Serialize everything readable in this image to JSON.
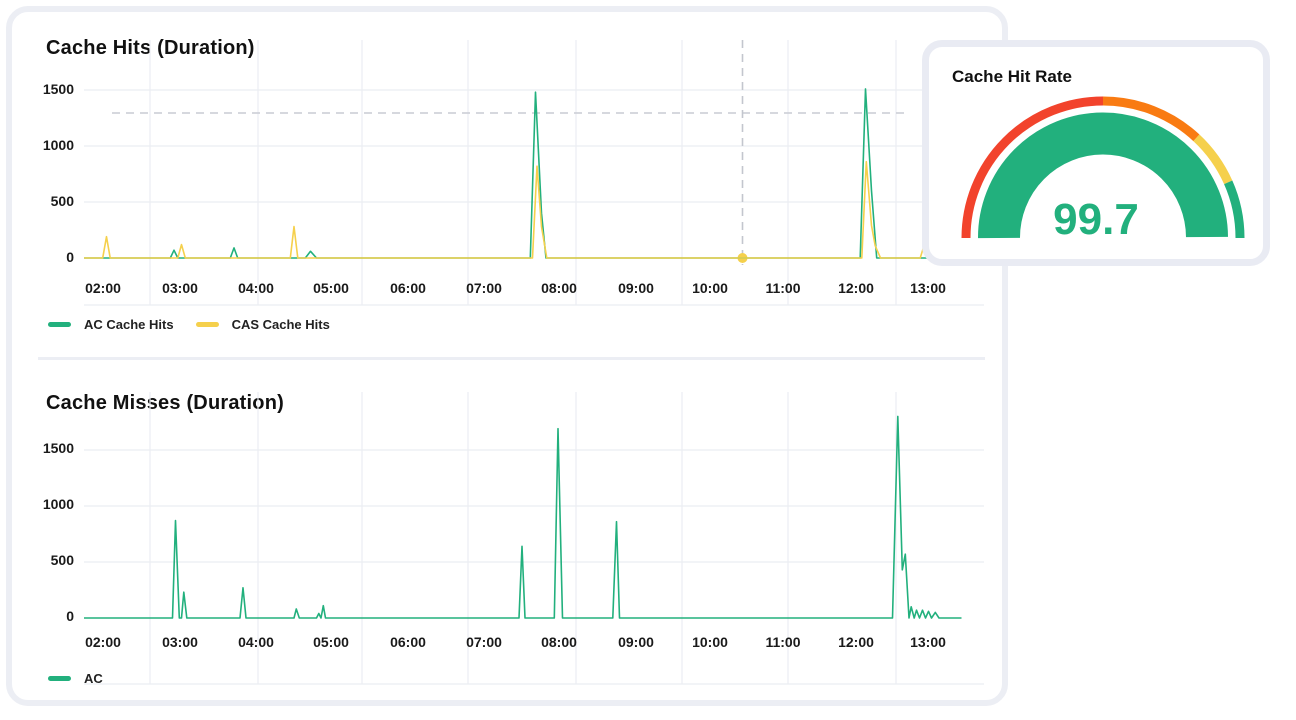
{
  "hits_chart": {
    "title": "Cache Hits (Duration)",
    "legend": [
      {
        "label": "AC Cache Hits",
        "color": "#22b07d"
      },
      {
        "label": "CAS Cache Hits",
        "color": "#f5d04c"
      }
    ]
  },
  "misses_chart": {
    "title": "Cache Misses (Duration)",
    "legend": [
      {
        "label": "AC",
        "color": "#22b07d"
      }
    ]
  },
  "gauge": {
    "title": "Cache Hit Rate",
    "value": "99.7",
    "value_number": 99.7,
    "colors": {
      "fill": "#22b07d",
      "red": "#f2432c",
      "orange": "#f97b12",
      "yellow": "#f5d04c",
      "green": "#22b07d"
    }
  },
  "chart_data": [
    {
      "type": "line",
      "title": "Cache Hits (Duration)",
      "x_tick_labels": [
        "02:00",
        "03:00",
        "04:00",
        "05:00",
        "06:00",
        "07:00",
        "08:00",
        "09:00",
        "10:00",
        "11:00",
        "12:00",
        "13:00"
      ],
      "y_tick_labels": [
        "0",
        "500",
        "1000",
        "1500"
      ],
      "ylim": [
        0,
        1600
      ],
      "x_unit": "hour of day",
      "xlim": [
        1.8,
        13.8
      ],
      "threshold": 1300,
      "crosshair_x": 10.58,
      "grid": true,
      "legend_position": "bottom-left",
      "series": [
        {
          "name": "AC Cache Hits",
          "color": "#22b07d",
          "points": [
            [
              1.8,
              0
            ],
            [
              2.95,
              0
            ],
            [
              3.0,
              70
            ],
            [
              3.05,
              0
            ],
            [
              3.75,
              0
            ],
            [
              3.8,
              90
            ],
            [
              3.85,
              0
            ],
            [
              4.75,
              0
            ],
            [
              4.82,
              60
            ],
            [
              4.9,
              0
            ],
            [
              7.75,
              0
            ],
            [
              7.82,
              1480
            ],
            [
              7.9,
              400
            ],
            [
              7.96,
              0
            ],
            [
              12.15,
              0
            ],
            [
              12.22,
              1510
            ],
            [
              12.3,
              600
            ],
            [
              12.37,
              0
            ],
            [
              13.8,
              0
            ]
          ]
        },
        {
          "name": "CAS Cache Hits",
          "color": "#f5d04c",
          "points": [
            [
              1.8,
              0
            ],
            [
              2.05,
              0
            ],
            [
              2.1,
              190
            ],
            [
              2.15,
              0
            ],
            [
              3.05,
              0
            ],
            [
              3.1,
              120
            ],
            [
              3.15,
              0
            ],
            [
              4.55,
              0
            ],
            [
              4.6,
              280
            ],
            [
              4.65,
              0
            ],
            [
              7.78,
              0
            ],
            [
              7.84,
              820
            ],
            [
              7.9,
              280
            ],
            [
              7.97,
              0
            ],
            [
              12.17,
              0
            ],
            [
              12.23,
              860
            ],
            [
              12.3,
              290
            ],
            [
              12.35,
              110
            ],
            [
              12.42,
              0
            ],
            [
              12.95,
              0
            ],
            [
              13.0,
              110
            ],
            [
              13.05,
              0
            ],
            [
              13.8,
              0
            ]
          ]
        }
      ]
    },
    {
      "type": "line",
      "title": "Cache Misses (Duration)",
      "x_tick_labels": [
        "02:00",
        "03:00",
        "04:00",
        "05:00",
        "06:00",
        "07:00",
        "08:00",
        "09:00",
        "10:00",
        "11:00",
        "12:00",
        "13:00"
      ],
      "y_tick_labels": [
        "0",
        "500",
        "1000",
        "1500"
      ],
      "ylim": [
        0,
        1700
      ],
      "x_unit": "hour of day",
      "xlim": [
        1.8,
        13.8
      ],
      "grid": true,
      "legend_position": "bottom-left",
      "series": [
        {
          "name": "AC",
          "color": "#22b07d",
          "points": [
            [
              1.8,
              0
            ],
            [
              2.98,
              0
            ],
            [
              3.02,
              870
            ],
            [
              3.07,
              0
            ],
            [
              3.1,
              0
            ],
            [
              3.13,
              230
            ],
            [
              3.17,
              0
            ],
            [
              3.88,
              0
            ],
            [
              3.92,
              270
            ],
            [
              3.96,
              0
            ],
            [
              4.6,
              0
            ],
            [
              4.63,
              80
            ],
            [
              4.67,
              0
            ],
            [
              4.9,
              0
            ],
            [
              4.93,
              40
            ],
            [
              4.96,
              0
            ],
            [
              4.99,
              110
            ],
            [
              5.02,
              0
            ],
            [
              7.6,
              0
            ],
            [
              7.64,
              640
            ],
            [
              7.68,
              0
            ],
            [
              8.07,
              0
            ],
            [
              8.12,
              1690
            ],
            [
              8.18,
              0
            ],
            [
              8.85,
              0
            ],
            [
              8.9,
              860
            ],
            [
              8.94,
              0
            ],
            [
              12.58,
              0
            ],
            [
              12.65,
              1800
            ],
            [
              12.71,
              430
            ],
            [
              12.75,
              570
            ],
            [
              12.8,
              0
            ],
            [
              12.83,
              100
            ],
            [
              12.87,
              0
            ],
            [
              12.9,
              70
            ],
            [
              12.94,
              0
            ],
            [
              12.98,
              70
            ],
            [
              13.02,
              0
            ],
            [
              13.06,
              60
            ],
            [
              13.1,
              0
            ],
            [
              13.15,
              50
            ],
            [
              13.2,
              0
            ],
            [
              13.5,
              0
            ]
          ]
        }
      ]
    }
  ]
}
